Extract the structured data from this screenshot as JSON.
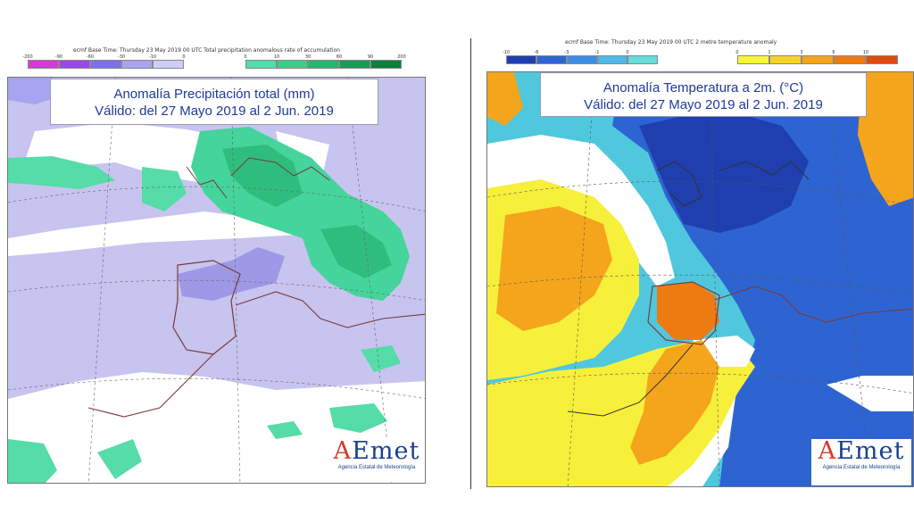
{
  "left_panel": {
    "header": "ecmf  Base Time: Thursday 23 May 2019 00 UTC Total precipitation anomalous rate of accumulation",
    "legend_neg": {
      "colors": [
        "#d63bd6",
        "#9a49e0",
        "#7a72e6",
        "#a7a4f0",
        "#cfcdf7"
      ],
      "ticks": [
        "-200",
        "-90",
        "-60",
        "-30",
        "-10",
        "0"
      ]
    },
    "legend_pos": {
      "colors": [
        "#55dca8",
        "#3ecb8b",
        "#2bb370",
        "#1c9a55",
        "#0e7e3c"
      ],
      "ticks": [
        "0",
        "10",
        "30",
        "60",
        "90",
        "200"
      ]
    },
    "title_line1": "Anomalía Precipitación total (mm)",
    "title_line2": "Válido: del 27 Mayo 2019 al 2 Jun. 2019",
    "logo": "AEmet",
    "logo_sub": "Agencia Estatal de Meteorología"
  },
  "right_panel": {
    "header": "ecmf  Base Time: Thursday 23 May 2019 00 UTC 2 metre temperature anomaly",
    "legend_neg": {
      "colors": [
        "#1f3fae",
        "#2e64d2",
        "#3d8ce6",
        "#4fb8e8",
        "#66dcdc"
      ],
      "ticks": [
        "-10",
        "-6",
        "-3",
        "-1",
        "0"
      ]
    },
    "legend_pos": {
      "colors": [
        "#f7f73a",
        "#f7d22a",
        "#f4a51c",
        "#ee7a12",
        "#e04a0c"
      ],
      "ticks": [
        "0",
        "1",
        "3",
        "6",
        "10"
      ]
    },
    "title_line1": "Anomalía Temperatura a 2m. (°C)",
    "title_line2": "Válido: del 27 Mayo 2019 al 2 Jun. 2019",
    "logo": "AEmet",
    "logo_sub": "Agencia Estatal de Meteorología"
  }
}
